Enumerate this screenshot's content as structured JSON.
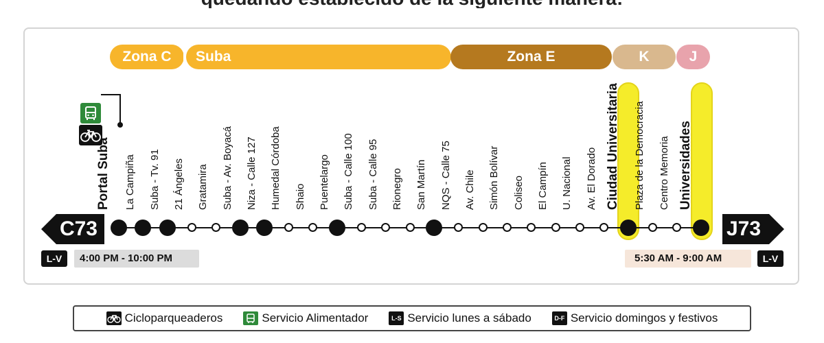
{
  "header": {
    "partial_text": "quedando establecido de la siguiente manera:"
  },
  "zones": [
    {
      "label": "Zona C",
      "color": "#f7b52b"
    },
    {
      "label": "Suba",
      "color": "#f7b52b"
    },
    {
      "label": "Zona E",
      "color": "#b5791f"
    },
    {
      "label": "K",
      "color": "#d9b88e"
    },
    {
      "label": "J",
      "color": "#e8a3ac"
    }
  ],
  "stations": [
    {
      "name": "Portal Suba",
      "stop": "big",
      "bold": true
    },
    {
      "name": "La Campiña",
      "stop": "big",
      "bold": false
    },
    {
      "name": "Suba - Tv. 91",
      "stop": "big",
      "bold": false
    },
    {
      "name": "21 Ángeles",
      "stop": "small",
      "bold": false
    },
    {
      "name": "Gratamira",
      "stop": "small",
      "bold": false
    },
    {
      "name": "Suba - Av. Boyacá",
      "stop": "big",
      "bold": false
    },
    {
      "name": "Niza - Calle 127",
      "stop": "big",
      "bold": false
    },
    {
      "name": "Humedal Córdoba",
      "stop": "small",
      "bold": false
    },
    {
      "name": "Shaio",
      "stop": "small",
      "bold": false
    },
    {
      "name": "Puentelargo",
      "stop": "big",
      "bold": false
    },
    {
      "name": "Suba - Calle 100",
      "stop": "small",
      "bold": false
    },
    {
      "name": "Suba - Calle 95",
      "stop": "small",
      "bold": false
    },
    {
      "name": "Rionegro",
      "stop": "small",
      "bold": false
    },
    {
      "name": "San Martín",
      "stop": "big",
      "bold": false
    },
    {
      "name": "NQS - Calle 75",
      "stop": "small",
      "bold": false
    },
    {
      "name": "Av. Chile",
      "stop": "small",
      "bold": false
    },
    {
      "name": "Simón Bolívar",
      "stop": "small",
      "bold": false
    },
    {
      "name": "Coliseo",
      "stop": "small",
      "bold": false
    },
    {
      "name": "El Campín",
      "stop": "small",
      "bold": false
    },
    {
      "name": "U. Nacional",
      "stop": "small",
      "bold": false
    },
    {
      "name": "Av. El Dorado",
      "stop": "small",
      "bold": false
    },
    {
      "name": "Ciudad Universitaria",
      "stop": "big",
      "bold": true,
      "highlight": true
    },
    {
      "name": "Plaza de la Democracia",
      "stop": "small",
      "bold": false
    },
    {
      "name": "Centro Memoria",
      "stop": "small",
      "bold": false
    },
    {
      "name": "Universidades",
      "stop": "big",
      "bold": true,
      "highlight": true
    }
  ],
  "routes": {
    "left": {
      "code": "C73",
      "days": "L-V",
      "schedule": "4:00 PM - 10:00 PM"
    },
    "right": {
      "code": "J73",
      "days": "L-V",
      "schedule": "5:30 AM - 9:00 AM"
    }
  },
  "legend": [
    {
      "icon": "bicycle-icon",
      "label": "Cicloparqueaderos"
    },
    {
      "icon": "bus-icon",
      "label": "Servicio Alimentador"
    },
    {
      "icon": "ls-badge",
      "badge": "L-S",
      "label": "Servicio lunes a sábado"
    },
    {
      "icon": "df-badge",
      "badge": "D-F",
      "label": "Servicio domingos y festivos"
    }
  ],
  "colors": {
    "highlight": "#f5ec2a",
    "feeder_green": "#2f8a3a",
    "line": "#111111"
  }
}
